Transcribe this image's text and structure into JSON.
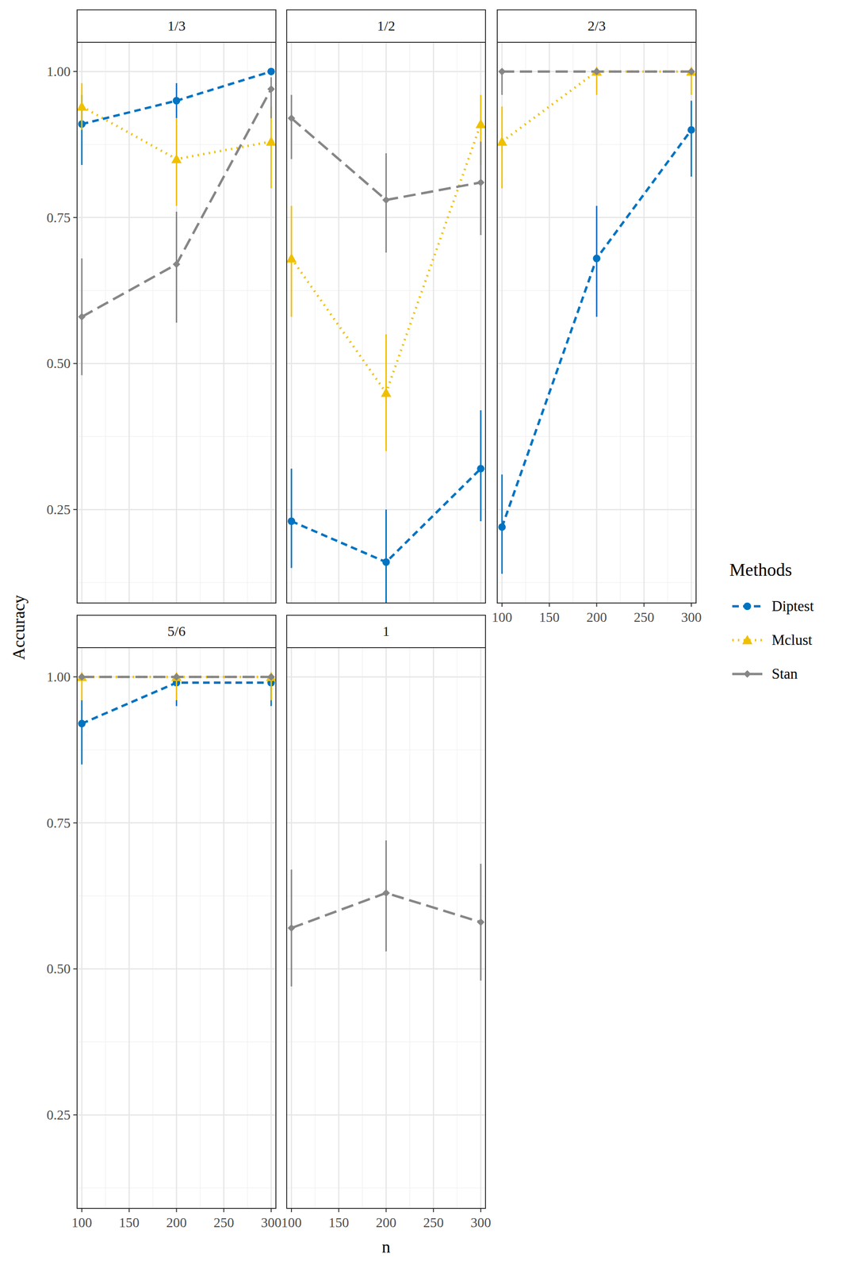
{
  "chart_data": {
    "type": "line",
    "x_label": "n",
    "y_label": "Accuracy",
    "legend_title": "Methods",
    "legend": "right",
    "grid": true,
    "x": [
      100,
      200,
      300
    ],
    "xlim": [
      95,
      305
    ],
    "xticks": [
      100,
      150,
      200,
      250,
      300
    ],
    "ylim": [
      0.09,
      1.05
    ],
    "yticks": [
      0.25,
      {
        "value": 0.5,
        "label": "0.50"
      },
      0.75,
      {
        "value": 1,
        "label": "1.00"
      }
    ],
    "series": [
      {
        "name": "Diptest",
        "color": "#0073C2",
        "marker": "circle",
        "line_style": "dashed"
      },
      {
        "name": "Mclust",
        "color": "#EFC000",
        "marker": "triangle",
        "line_style": "dotted"
      },
      {
        "name": "Stan",
        "color": "#868686",
        "marker": "diamond",
        "line_style": "longdash"
      }
    ],
    "panels": [
      {
        "title": "1/3",
        "series": [
          {
            "values": [
              0.91,
              0.95,
              1.0
            ],
            "lower": [
              0.84,
              0.92,
              1.0
            ],
            "upper": [
              0.96,
              0.98,
              1.0
            ]
          },
          {
            "values": [
              0.94,
              0.85,
              0.88
            ],
            "lower": [
              0.9,
              0.77,
              0.8
            ],
            "upper": [
              0.98,
              0.92,
              0.94
            ]
          },
          {
            "values": [
              0.58,
              0.67,
              0.97
            ],
            "lower": [
              0.48,
              0.57,
              0.92
            ],
            "upper": [
              0.68,
              0.76,
              0.99
            ]
          }
        ]
      },
      {
        "title": "1/2",
        "series": [
          {
            "values": [
              0.23,
              0.16,
              0.32
            ],
            "lower": [
              0.15,
              0.09,
              0.23
            ],
            "upper": [
              0.32,
              0.25,
              0.42
            ]
          },
          {
            "values": [
              0.68,
              0.45,
              0.91
            ],
            "lower": [
              0.58,
              0.35,
              0.84
            ],
            "upper": [
              0.77,
              0.55,
              0.96
            ]
          },
          {
            "values": [
              0.92,
              0.78,
              0.81
            ],
            "lower": [
              0.85,
              0.69,
              0.72
            ],
            "upper": [
              0.96,
              0.86,
              0.88
            ]
          }
        ]
      },
      {
        "title": "2/3",
        "series": [
          {
            "values": [
              0.22,
              0.68,
              0.9
            ],
            "lower": [
              0.14,
              0.58,
              0.82
            ],
            "upper": [
              0.31,
              0.77,
              0.95
            ]
          },
          {
            "values": [
              0.88,
              1.0,
              1.0
            ],
            "lower": [
              0.8,
              0.96,
              0.96
            ],
            "upper": [
              0.94,
              1.0,
              1.0
            ]
          },
          {
            "values": [
              1.0,
              1.0,
              1.0
            ],
            "lower": [
              0.96,
              1.0,
              1.0
            ],
            "upper": [
              1.0,
              1.0,
              1.0
            ]
          }
        ]
      },
      {
        "title": "5/6",
        "series": [
          {
            "values": [
              0.92,
              0.99,
              0.99
            ],
            "lower": [
              0.85,
              0.95,
              0.95
            ],
            "upper": [
              0.96,
              1.0,
              1.0
            ]
          },
          {
            "values": [
              1.0,
              1.0,
              1.0
            ],
            "lower": [
              0.96,
              0.96,
              0.96
            ],
            "upper": [
              1.0,
              1.0,
              1.0
            ]
          },
          {
            "values": [
              1.0,
              1.0,
              1.0
            ],
            "lower": [
              1.0,
              1.0,
              1.0
            ],
            "upper": [
              1.0,
              1.0,
              1.0
            ]
          }
        ]
      },
      {
        "title": "1",
        "series": [
          {
            "values": [
              null,
              null,
              null
            ],
            "lower": [
              null,
              null,
              null
            ],
            "upper": [
              null,
              null,
              null
            ]
          },
          {
            "values": [
              null,
              null,
              null
            ],
            "lower": [
              null,
              null,
              null
            ],
            "upper": [
              null,
              null,
              null
            ]
          },
          {
            "values": [
              0.57,
              0.63,
              0.58
            ],
            "lower": [
              0.47,
              0.53,
              0.48
            ],
            "upper": [
              0.67,
              0.72,
              0.68
            ]
          }
        ]
      }
    ]
  }
}
